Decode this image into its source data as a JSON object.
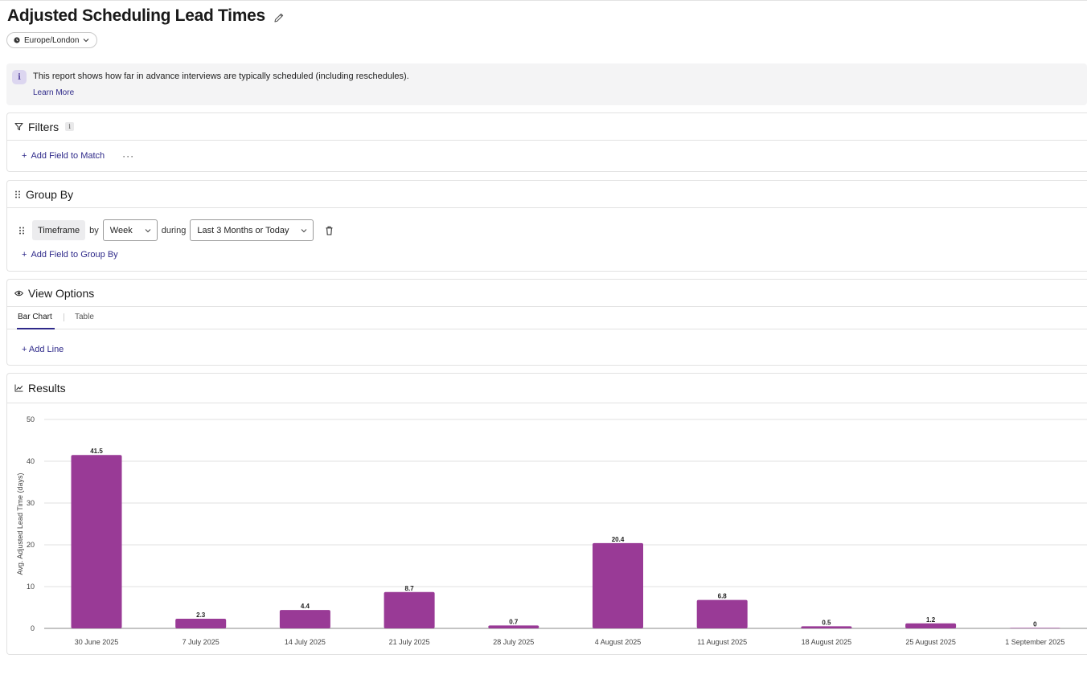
{
  "page": {
    "title": "Adjusted Scheduling Lead Times",
    "timezone": "Europe/London"
  },
  "info": {
    "text": "This report shows how far in advance interviews are typically scheduled (including reschedules).",
    "learn_more": "Learn More"
  },
  "filters": {
    "title": "Filters",
    "add_label": "Add Field to Match",
    "more_label": "···"
  },
  "group_by": {
    "title": "Group By",
    "field": "Timeframe",
    "by_label": "by",
    "interval": "Week",
    "during_label": "during",
    "range": "Last 3 Months or Today",
    "add_label": "Add Field to Group By"
  },
  "view_options": {
    "title": "View Options",
    "tabs": [
      {
        "label": "Bar Chart",
        "active": true
      },
      {
        "label": "Table",
        "active": false
      }
    ],
    "add_line_label": "+ Add Line"
  },
  "results": {
    "title": "Results"
  },
  "colors": {
    "bar": "#993a96",
    "accent": "#2f2a8a"
  },
  "chart_data": {
    "type": "bar",
    "categories": [
      "30 June 2025",
      "7 July 2025",
      "14 July 2025",
      "21 July 2025",
      "28 July 2025",
      "4 August 2025",
      "11 August 2025",
      "18 August 2025",
      "25 August 2025",
      "1 September 2025"
    ],
    "values": [
      41.5,
      2.3,
      4.4,
      8.7,
      0.7,
      20.4,
      6.8,
      0.5,
      1.2,
      0
    ],
    "value_labels": [
      "41.5",
      "2.3",
      "4.4",
      "8.7",
      "0.7",
      "20.4",
      "6.8",
      "0.5",
      "1.2",
      "0"
    ],
    "ylabel": "Avg. Adjusted Lead Time (days)",
    "ylim": [
      0,
      50
    ],
    "yticks": [
      0,
      10,
      20,
      30,
      40,
      50
    ],
    "grid": true
  }
}
